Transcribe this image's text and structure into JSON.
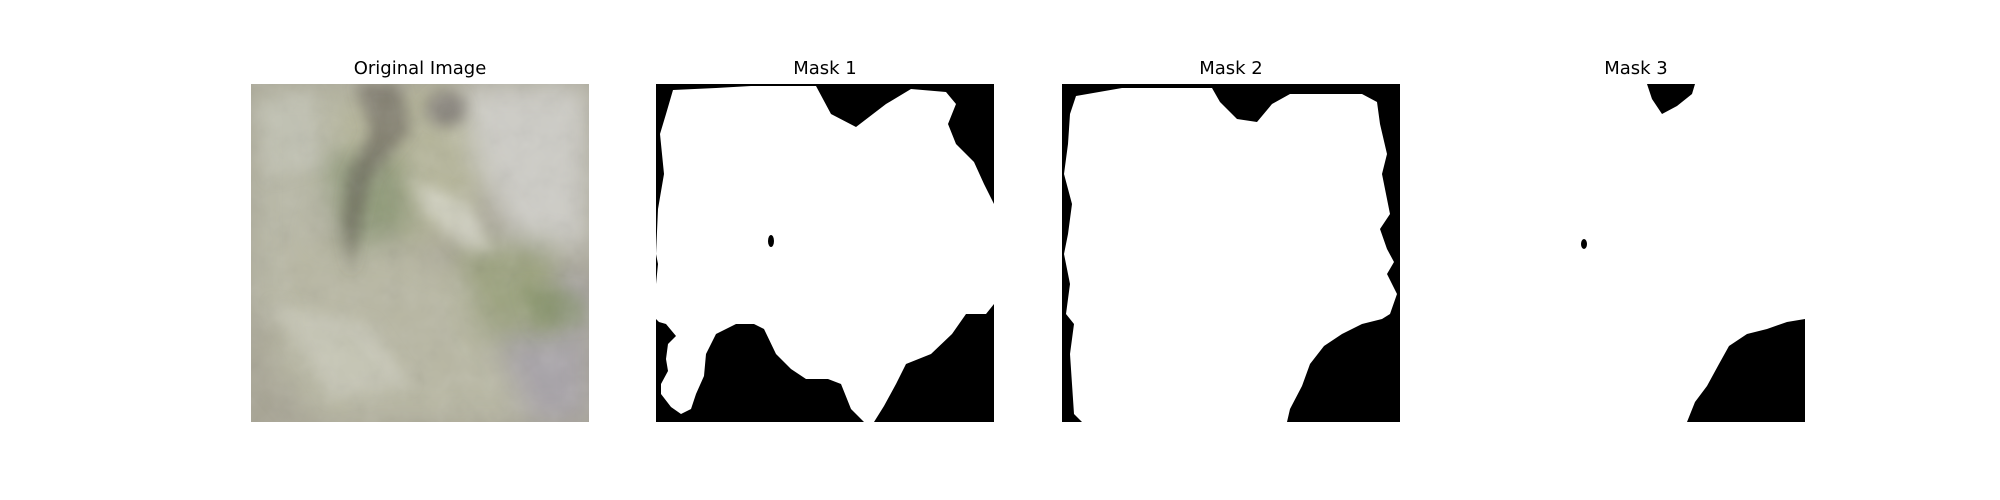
{
  "panels": [
    {
      "title": "Original Image"
    },
    {
      "title": "Mask 1"
    },
    {
      "title": "Mask 2"
    },
    {
      "title": "Mask 3"
    }
  ],
  "colors": {
    "mask_foreground": "#ffffff",
    "mask_background": "#000000",
    "original_base": "#a8a595",
    "original_green": "#8f9a78",
    "original_shadow": "#5d5650",
    "original_highlight": "#d8d8cc",
    "original_gray": "#a7a3a8"
  }
}
